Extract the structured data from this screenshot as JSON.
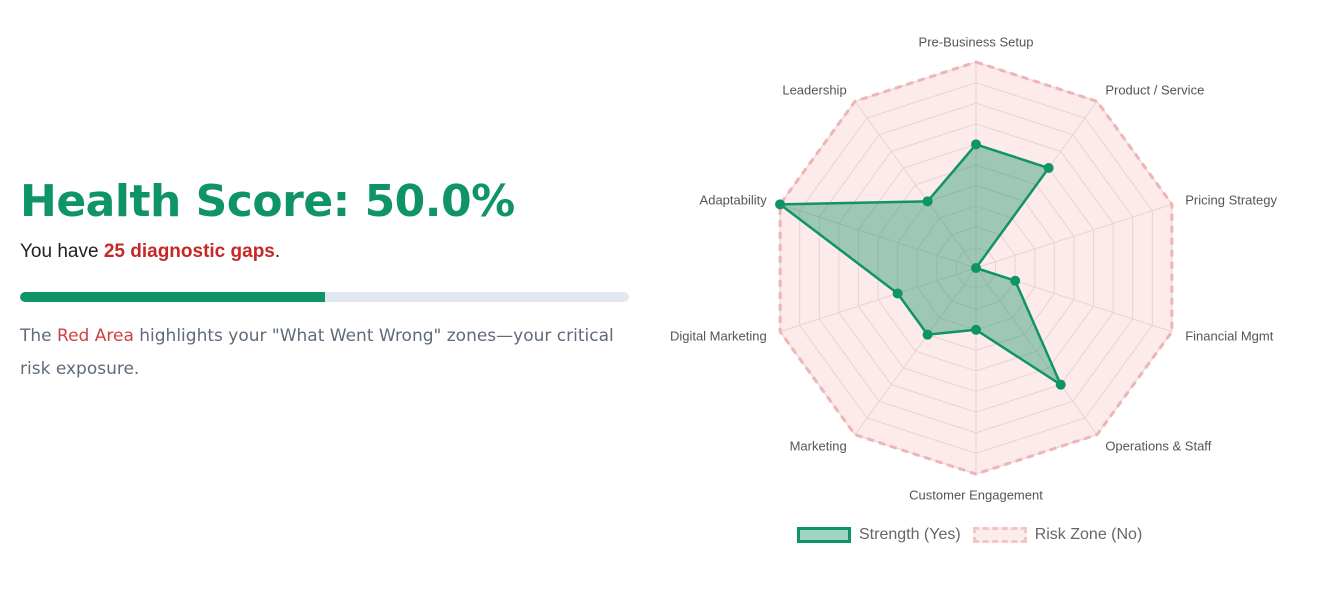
{
  "summary": {
    "score_text": "Health Score: 50.0%",
    "gaps_prefix": "You have ",
    "gaps_strong": "25 diagnostic gaps",
    "gaps_suffix": ".",
    "progress_fraction": 0.5,
    "desc_prefix": "The ",
    "desc_red": "Red Area",
    "desc_suffix": " highlights your \"What Went Wrong\" zones—your critical risk exposure."
  },
  "colors": {
    "accent": "#0f9467",
    "danger": "#c62828",
    "risk_fill": "#fdeaea",
    "risk_border": "#f0b4b4"
  },
  "chart_data": {
    "type": "radar",
    "categories": [
      "Pre-Business Setup",
      "Product / Service",
      "Pricing Strategy",
      "Financial Mgmt",
      "Operations & Staff",
      "Customer Engagement",
      "Marketing",
      "Digital Marketing",
      "Adaptability",
      "Leadership"
    ],
    "rlim": [
      0,
      10
    ],
    "grid": true,
    "series": [
      {
        "name": "Strength (Yes)",
        "values": [
          6,
          6,
          0,
          2,
          7,
          3,
          4,
          4,
          10,
          4
        ],
        "color": "#0f9467"
      },
      {
        "name": "Risk Zone (No)",
        "values": [
          10,
          10,
          10,
          10,
          10,
          10,
          10,
          10,
          10,
          10
        ],
        "color": "#f0b4b4"
      }
    ],
    "legend": "bottom"
  }
}
